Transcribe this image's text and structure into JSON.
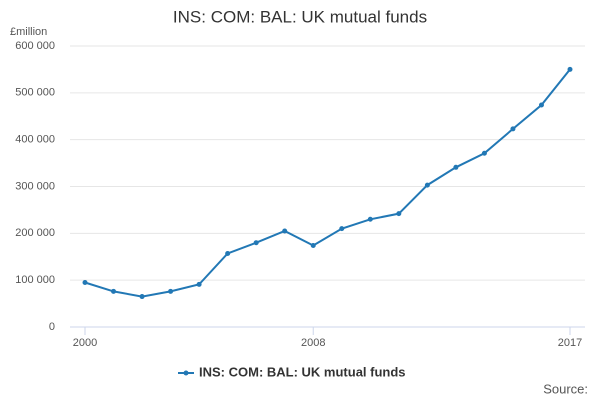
{
  "chart_data": {
    "type": "line",
    "title": "INS: COM: BAL: UK mutual funds",
    "y_unit": "£million",
    "x": [
      2000,
      2001,
      2002,
      2003,
      2004,
      2005,
      2006,
      2007,
      2008,
      2009,
      2010,
      2011,
      2012,
      2013,
      2014,
      2015,
      2016,
      2017
    ],
    "series": [
      {
        "name": "INS: COM: BAL: UK mutual funds",
        "color": "#2278b5",
        "values": [
          95000,
          76000,
          65000,
          76000,
          91000,
          157000,
          180000,
          205000,
          174000,
          210000,
          230000,
          242000,
          303000,
          341000,
          371000,
          423000,
          474000,
          550000
        ]
      }
    ],
    "xlim": [
      2000,
      2017
    ],
    "xticks": [
      2000,
      2008,
      2017
    ],
    "ylim": [
      0,
      600000
    ],
    "yticks": [
      0,
      {
        "value": 100000,
        "label": "100 000"
      },
      {
        "value": 200000,
        "label": "200 000"
      },
      {
        "value": 300000,
        "label": "300 000"
      },
      {
        "value": 400000,
        "label": "400 000"
      },
      {
        "value": 500000,
        "label": "500 000"
      },
      {
        "value": 600000,
        "label": "600 000"
      }
    ],
    "grid": true,
    "legend": "bottom",
    "source": "Source:"
  }
}
